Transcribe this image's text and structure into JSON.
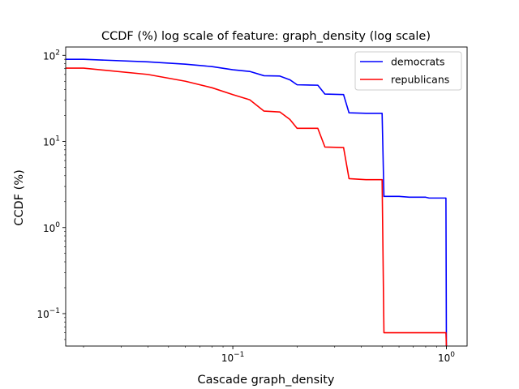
{
  "chart_data": {
    "type": "line",
    "title": "CCDF (%) log scale of feature: graph_density (log scale)",
    "xlabel": "Cascade graph_density",
    "ylabel": "CCDF (%)",
    "xscale": "log",
    "yscale": "log",
    "xlim": [
      0.0165,
      1.25
    ],
    "ylim": [
      0.042,
      125
    ],
    "xticks": [
      {
        "value": 0.1,
        "base": "10",
        "exp": "−1"
      },
      {
        "value": 1,
        "base": "10",
        "exp": "0"
      }
    ],
    "yticks": [
      {
        "value": 0.1,
        "base": "10",
        "exp": "−1"
      },
      {
        "value": 1,
        "base": "10",
        "exp": "0"
      },
      {
        "value": 10,
        "base": "10",
        "exp": "1"
      },
      {
        "value": 100,
        "base": "10",
        "exp": "2"
      }
    ],
    "grid": false,
    "legend_position": "top-right",
    "series": [
      {
        "name": "democrats",
        "color": "#0000ff",
        "x": [
          0.0165,
          0.02,
          0.04,
          0.06,
          0.08,
          0.1,
          0.12,
          0.14,
          0.166,
          0.185,
          0.2,
          0.25,
          0.27,
          0.33,
          0.35,
          0.42,
          0.5,
          0.51,
          0.6,
          0.67,
          0.8,
          0.83,
          0.995,
          1.0
        ],
        "y": [
          90,
          90,
          84,
          79,
          74,
          68,
          65,
          58,
          57.5,
          52,
          45.5,
          45,
          35.5,
          35,
          21.5,
          21.2,
          21.2,
          2.3,
          2.3,
          2.25,
          2.25,
          2.2,
          2.2,
          0.042
        ]
      },
      {
        "name": "republicans",
        "color": "#ff0000",
        "x": [
          0.0165,
          0.02,
          0.04,
          0.06,
          0.08,
          0.1,
          0.12,
          0.14,
          0.166,
          0.185,
          0.2,
          0.25,
          0.27,
          0.33,
          0.35,
          0.42,
          0.5,
          0.51,
          0.6,
          0.67,
          0.8,
          0.83,
          0.995,
          1.0
        ],
        "y": [
          71,
          71,
          60,
          50,
          42,
          35,
          30.5,
          22.5,
          22,
          18,
          14.2,
          14.2,
          8.6,
          8.5,
          3.7,
          3.6,
          3.6,
          0.06,
          0.06,
          0.06,
          0.06,
          0.06,
          0.06,
          0.042
        ]
      }
    ]
  }
}
